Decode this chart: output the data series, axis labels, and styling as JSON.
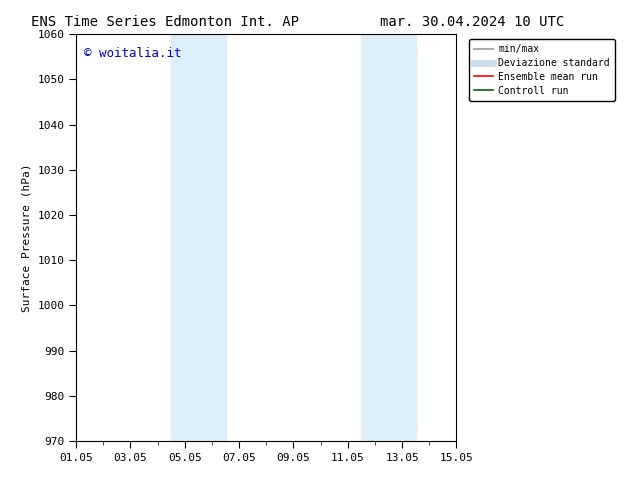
{
  "title_left": "ENS Time Series Edmonton Int. AP",
  "title_right": "mar. 30.04.2024 10 UTC",
  "ylabel": "Surface Pressure (hPa)",
  "ylim": [
    970,
    1060
  ],
  "yticks": [
    970,
    980,
    990,
    1000,
    1010,
    1020,
    1030,
    1040,
    1050,
    1060
  ],
  "xlim_num": [
    0,
    14
  ],
  "xtick_labels": [
    "01.05",
    "03.05",
    "05.05",
    "07.05",
    "09.05",
    "11.05",
    "13.05",
    "15.05"
  ],
  "xtick_positions": [
    0,
    2,
    4,
    6,
    8,
    10,
    12,
    14
  ],
  "background_color": "#ffffff",
  "plot_bg_color": "#ffffff",
  "shaded_regions": [
    {
      "xmin": 3.5,
      "xmax": 4.5,
      "color": "#ddeef8"
    },
    {
      "xmin": 4.5,
      "xmax": 5.5,
      "color": "#ddeef8"
    },
    {
      "xmin": 10.5,
      "xmax": 11.5,
      "color": "#ddeef8"
    },
    {
      "xmin": 11.5,
      "xmax": 12.5,
      "color": "#ddeef8"
    }
  ],
  "watermark_text": "© woitalia.it",
  "watermark_color": "#0000cc",
  "legend_entries": [
    {
      "label": "min/max",
      "color": "#999999",
      "lw": 1.2,
      "ls": "-"
    },
    {
      "label": "Deviazione standard",
      "color": "#ccddee",
      "lw": 5,
      "ls": "-"
    },
    {
      "label": "Ensemble mean run",
      "color": "#ff0000",
      "lw": 1.2,
      "ls": "-"
    },
    {
      "label": "Controll run",
      "color": "#006600",
      "lw": 1.2,
      "ls": "-"
    }
  ],
  "title_fontsize": 10,
  "ylabel_fontsize": 8,
  "tick_fontsize": 8,
  "watermark_fontsize": 9,
  "legend_fontsize": 7,
  "font_family": "DejaVu Sans Mono"
}
